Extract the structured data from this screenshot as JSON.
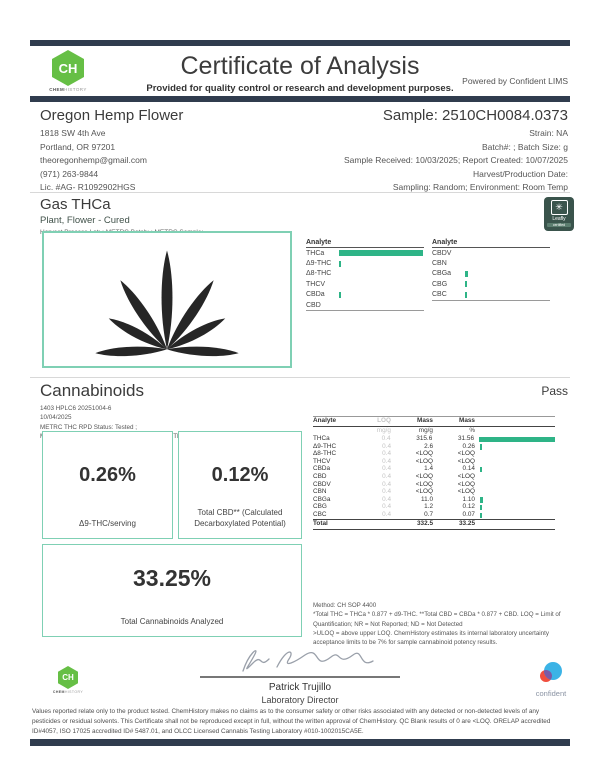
{
  "colors": {
    "navy_bar": "#303c4e",
    "accent_teal": "#2eb487",
    "box_border": "#7fd0b4",
    "ch_green": "#66bf45",
    "leafly_green": "#3a544c",
    "confident_blue": "#3bb3e6",
    "confident_red": "#f04e3e"
  },
  "header": {
    "logo_initials": "CH",
    "logo_word_1": "CHEM",
    "logo_word_2": "HISTORY",
    "title": "Certificate of Analysis",
    "subtitle": "Provided for quality control or research and development purposes.",
    "powered_by": "Powered by Confident LIMS"
  },
  "client": {
    "name": "Oregon Hemp Flower",
    "lines": [
      "1818 SW 4th Ave",
      "Portland, OR 97201",
      "theoregonhemp@gmail.com",
      "(971) 263-9844",
      "Lic. #AG- R1092902HGS"
    ]
  },
  "sample": {
    "id": "Sample: 2510CH0084.0373",
    "lines": [
      "Strain: NA",
      "Batch#: ; Batch Size:  g",
      "Sample Received: 10/03/2025; Report Created: 10/07/2025",
      "Harvest/Production Date:",
      "Sampling: Random; Environment: Room Temp"
    ]
  },
  "product": {
    "name": "Gas THCa",
    "type": "Plant, Flower - Cured",
    "metrc_line": "Harvest Process Lot: ; METRC Batch: ; METRC Sample:",
    "leafly": {
      "glyph": "✳",
      "label": "Leafly",
      "sub": "certified"
    }
  },
  "overview_chart": {
    "type": "bar",
    "unit": "% mass",
    "max": 31.56,
    "left": {
      "header": "Analyte",
      "rows": [
        [
          "THCa",
          31.56
        ],
        [
          "Δ9-THC",
          0.26
        ],
        [
          "Δ8-THC",
          0
        ],
        [
          "THCV",
          0
        ],
        [
          "CBDa",
          0.14
        ],
        [
          "CBD",
          0
        ]
      ]
    },
    "right": {
      "header": "Analyte",
      "rows": [
        [
          "CBDV",
          0
        ],
        [
          "CBN",
          0
        ],
        [
          "CBGa",
          1.1
        ],
        [
          "CBG",
          0.12
        ],
        [
          "CBC",
          0.07
        ]
      ]
    }
  },
  "cannabinoids": {
    "title": "Cannabinoids",
    "status": "Pass",
    "meta": [
      "1403 HPLC6 20251004-6",
      "10/04/2025",
      "METRC THC RPD Status: Tested ;",
      "METRC CBD RPD Status: Tested ; METRC Δ8-THC RPD Status: Tested"
    ],
    "stats": [
      {
        "value": "0.26%",
        "label": "Δ9-THC/serving"
      },
      {
        "value": "0.12%",
        "label": "Total CBD** (Calculated Decarboxylated Potential)"
      },
      {
        "value": "33.25%",
        "label": "Total Cannabinoids Analyzed"
      }
    ],
    "table": {
      "headers": [
        "Analyte",
        "LOQ",
        "Mass",
        "Mass"
      ],
      "units": [
        "",
        "mg/g",
        "mg/g",
        "%"
      ],
      "rows": [
        {
          "analyte": "THCa",
          "loq": "0.4",
          "mass": "315.6",
          "pct": "31.56",
          "bar": 31.56
        },
        {
          "analyte": "Δ9-THC",
          "loq": "0.4",
          "mass": "2.6",
          "pct": "0.26",
          "bar": 0.26
        },
        {
          "analyte": "Δ8-THC",
          "loq": "0.4",
          "mass": "<LOQ",
          "pct": "<LOQ",
          "bar": 0
        },
        {
          "analyte": "THCV",
          "loq": "0.4",
          "mass": "<LOQ",
          "pct": "<LOQ",
          "bar": 0
        },
        {
          "analyte": "CBDa",
          "loq": "0.4",
          "mass": "1.4",
          "pct": "0.14",
          "bar": 0.14
        },
        {
          "analyte": "CBD",
          "loq": "0.4",
          "mass": "<LOQ",
          "pct": "<LOQ",
          "bar": 0
        },
        {
          "analyte": "CBDV",
          "loq": "0.4",
          "mass": "<LOQ",
          "pct": "<LOQ",
          "bar": 0
        },
        {
          "analyte": "CBN",
          "loq": "0.4",
          "mass": "<LOQ",
          "pct": "<LOQ",
          "bar": 0
        },
        {
          "analyte": "CBGa",
          "loq": "0.4",
          "mass": "11.0",
          "pct": "1.10",
          "bar": 1.1
        },
        {
          "analyte": "CBG",
          "loq": "0.4",
          "mass": "1.2",
          "pct": "0.12",
          "bar": 0.12
        },
        {
          "analyte": "CBC",
          "loq": "0.4",
          "mass": "0.7",
          "pct": "0.07",
          "bar": 0.07
        }
      ],
      "total": {
        "label": "Total",
        "mass": "332.5",
        "pct": "33.25"
      }
    },
    "method_lines": [
      "Method: CH SOP 4400",
      "*Total THC = THCa * 0.877 + d9-THC. **Total CBD = CBDa * 0.877 + CBD. LOQ = Limit of",
      "Quantification; NR = Not Reported; ND = Not Detected",
      ">ULOQ = above upper LOQ. ChemHistory estimates its internal laboratory uncertainty",
      "acceptance limits to be 7% for sample cannabinoid potency results."
    ]
  },
  "signature": {
    "name": "Patrick Trujillo",
    "title": "Laboratory Director"
  },
  "footer": {
    "confident_label": "confident",
    "disclaimer": "Values reported relate only to the product tested. ChemHistory makes no claims as to the consumer safety or other risks associated with any detected or non-detected levels of any pesticides or residual solvents. This Certificate shall not be reproduced except in full, without the written approval of ChemHistory. QC Blank results of 0 are <LOQ.  ORELAP accredited ID#4057, ISO 17025 accredited ID# 5487.01, and OLCC Licensed Cannabis Testing Laboratory #010-1002015CA5E."
  }
}
